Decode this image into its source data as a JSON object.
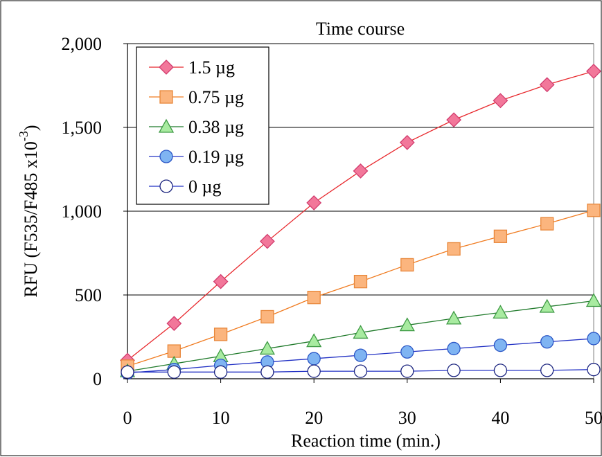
{
  "chart_data": {
    "type": "line",
    "title": "Time course",
    "xlabel": "Reaction time (min.)",
    "ylabel": "RFU (F535/F485 x10",
    "ylabel_superscript": "-3",
    "ylabel_close": ")",
    "xlim": [
      0,
      50
    ],
    "ylim": [
      0,
      2000
    ],
    "x_ticks": [
      0,
      10,
      20,
      30,
      40,
      50
    ],
    "x_tick_labels": [
      "0",
      "10",
      "20",
      "30",
      "40",
      "50"
    ],
    "y_ticks": [
      0,
      500,
      1000,
      1500,
      2000
    ],
    "y_tick_labels": [
      "0",
      "500",
      "1,000",
      "1,500",
      "2,000"
    ],
    "grid": "horizontal",
    "legend_position": "top-left",
    "x": [
      0,
      5,
      10,
      15,
      20,
      25,
      30,
      35,
      40,
      45,
      50
    ],
    "series": [
      {
        "name": "1.5 µg",
        "marker": "diamond",
        "line_color": "#e8282d",
        "fill": "#f2779a",
        "stroke": "#d23c6e",
        "values": [
          110,
          330,
          580,
          820,
          1050,
          1240,
          1410,
          1545,
          1660,
          1755,
          1835
        ]
      },
      {
        "name": "0.75 µg",
        "marker": "square",
        "line_color": "#f07a1e",
        "fill": "#fbb57e",
        "stroke": "#e8873a",
        "values": [
          75,
          165,
          265,
          370,
          485,
          580,
          680,
          775,
          850,
          925,
          1005
        ]
      },
      {
        "name": "0.38 µg",
        "marker": "triangle",
        "line_color": "#1f7a2a",
        "fill": "#a8eba0",
        "stroke": "#3f9a45",
        "values": [
          45,
          90,
          135,
          180,
          225,
          275,
          320,
          360,
          395,
          430,
          465
        ]
      },
      {
        "name": "0.19 µg",
        "marker": "circle",
        "line_color": "#2231c4",
        "fill": "#7fb4f2",
        "stroke": "#2a56c6",
        "values": [
          35,
          55,
          80,
          100,
          120,
          140,
          160,
          180,
          200,
          220,
          240
        ]
      },
      {
        "name": "0 µg",
        "marker": "circle-open",
        "line_color": "#2231c4",
        "fill": "#ffffff",
        "stroke": "#1a237e",
        "values": [
          40,
          40,
          40,
          40,
          45,
          45,
          45,
          50,
          50,
          50,
          55
        ]
      }
    ]
  }
}
